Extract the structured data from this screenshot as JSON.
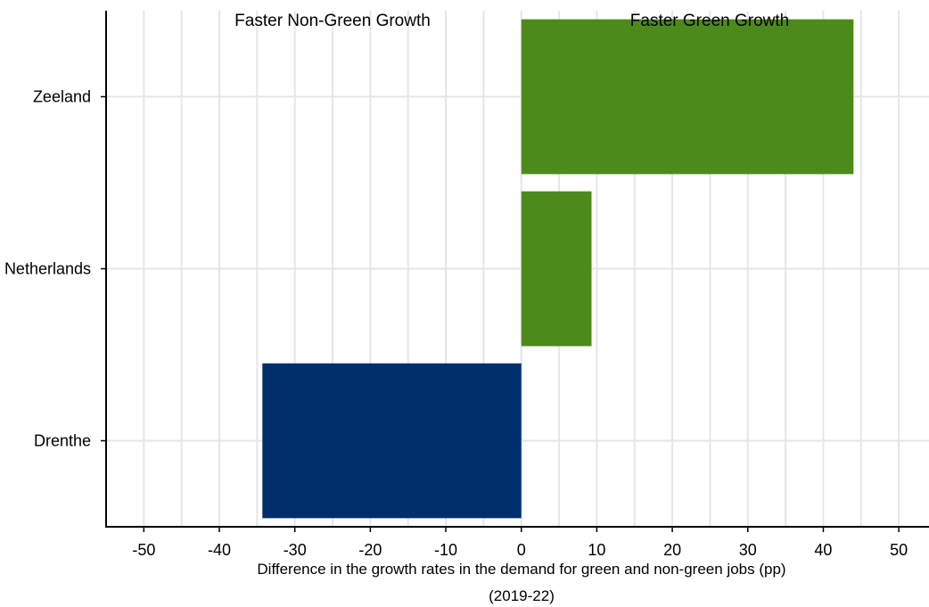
{
  "chart_data": {
    "type": "bar",
    "orientation": "horizontal",
    "categories": [
      "Zeeland",
      "Netherlands",
      "Drenthe"
    ],
    "values": [
      44,
      9.3,
      -34.3
    ],
    "colors": {
      "positive": "#4d8a1c",
      "negative": "#002f6c",
      "grid": "#e6e6e6",
      "axis": "#000000"
    },
    "xlim": [
      -55,
      54
    ],
    "xticks": [
      -50,
      -40,
      -30,
      -20,
      -10,
      0,
      10,
      20,
      30,
      40,
      50
    ],
    "xlabel": "Difference in the growth rates in the demand for green and non-green jobs (pp)",
    "xlabel_sub": "(2019-22)",
    "annotations": {
      "left": "Faster Non-Green Growth",
      "right": "Faster Green Growth"
    },
    "grid": true
  }
}
